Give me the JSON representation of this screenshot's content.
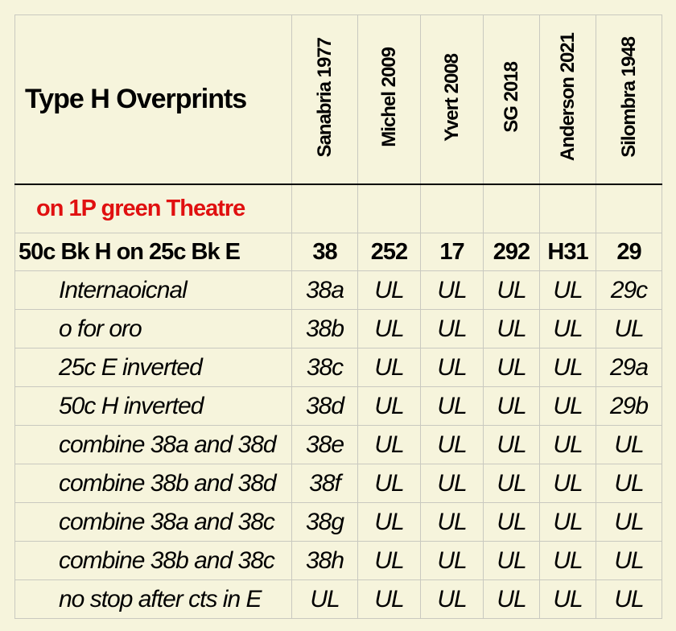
{
  "header": {
    "title": "Type H Overprints",
    "columns": [
      "Sanabria 1977",
      "Michel 2009",
      "Yvert 2008",
      "SG 2018",
      "Anderson 2021",
      "Silombra 1948"
    ]
  },
  "section": "on 1P green Theatre",
  "main_row": {
    "label": "50c Bk H on 25c Bk E",
    "values": [
      "38",
      "252",
      "17",
      "292",
      "H31",
      "29"
    ]
  },
  "rows": [
    {
      "label": "Internaoicnal",
      "values": [
        "38a",
        "UL",
        "UL",
        "UL",
        "UL",
        "29c"
      ]
    },
    {
      "label": "o for oro",
      "values": [
        "38b",
        "UL",
        "UL",
        "UL",
        "UL",
        "UL"
      ]
    },
    {
      "label": "25c E inverted",
      "values": [
        "38c",
        "UL",
        "UL",
        "UL",
        "UL",
        "29a"
      ]
    },
    {
      "label": "50c H inverted",
      "values": [
        "38d",
        "UL",
        "UL",
        "UL",
        "UL",
        "29b"
      ]
    },
    {
      "label": "combine 38a and 38d",
      "values": [
        "38e",
        "UL",
        "UL",
        "UL",
        "UL",
        "UL"
      ]
    },
    {
      "label": "combine 38b and 38d",
      "values": [
        "38f",
        "UL",
        "UL",
        "UL",
        "UL",
        "UL"
      ]
    },
    {
      "label": "combine 38a and 38c",
      "values": [
        "38g",
        "UL",
        "UL",
        "UL",
        "UL",
        "UL"
      ]
    },
    {
      "label": "combine 38b and 38c",
      "values": [
        "38h",
        "UL",
        "UL",
        "UL",
        "UL",
        "UL"
      ]
    },
    {
      "label": "no stop after cts in E",
      "values": [
        "UL",
        "UL",
        "UL",
        "UL",
        "UL",
        "UL"
      ]
    }
  ]
}
